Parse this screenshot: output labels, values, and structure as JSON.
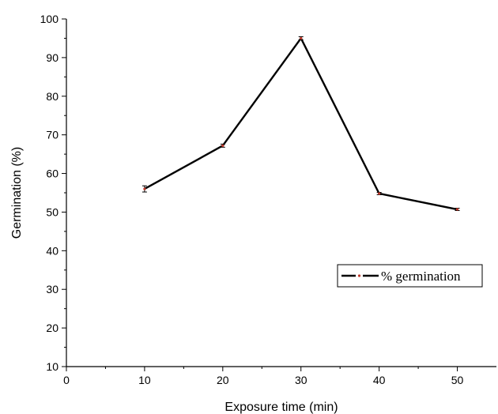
{
  "chart_data": {
    "type": "line",
    "xlabel": "Exposure time (min)",
    "ylabel": "Germination (%)",
    "xlim": [
      0,
      55
    ],
    "ylim": [
      10,
      100
    ],
    "x_ticks": [
      0,
      10,
      20,
      30,
      40,
      50
    ],
    "y_ticks": [
      10,
      20,
      30,
      40,
      50,
      60,
      70,
      80,
      90,
      100
    ],
    "grid": false,
    "legend_position": "right",
    "series": [
      {
        "name": "% germination",
        "color": "#000000",
        "marker_color": "#c0392b",
        "x": [
          10,
          20,
          30,
          40,
          50
        ],
        "y": [
          56,
          67.2,
          95,
          54.8,
          50.7
        ],
        "error": [
          0.8,
          0.4,
          0.4,
          0.3,
          0.3
        ]
      }
    ]
  }
}
